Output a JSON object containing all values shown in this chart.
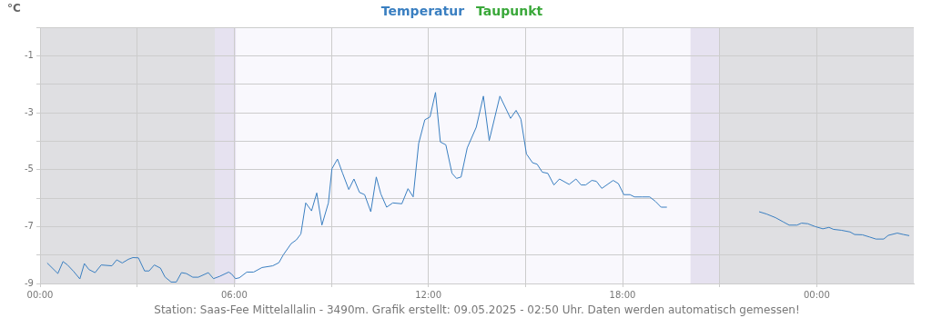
{
  "chart_data": {
    "type": "line",
    "ylabel": "°C",
    "annotations": [
      "Station: Saas-Fee Mittelallalin - 3490m. Grafik erstellt: 09.05.2025 - 02:50 Uhr. Daten werden automatisch gemessen!"
    ],
    "xlim": [
      0,
      27
    ],
    "xticks": [
      {
        "value": 0,
        "label": "00:00"
      },
      {
        "value": 3,
        "label": null
      },
      {
        "value": 6,
        "label": "06:00"
      },
      {
        "value": 9,
        "label": null
      },
      {
        "value": 12,
        "label": "12:00"
      },
      {
        "value": 15,
        "label": null
      },
      {
        "value": 18,
        "label": "18:00"
      },
      {
        "value": 21,
        "label": null
      },
      {
        "value": 24,
        "label": "00:00"
      }
    ],
    "ylim": [
      -9,
      0
    ],
    "yticks": [
      -9,
      {
        "value": -8,
        "label": null
      },
      -7,
      {
        "value": -6,
        "label": null
      },
      -5,
      {
        "value": -4,
        "label": null
      },
      -3,
      {
        "value": -2,
        "label": null
      },
      -1,
      {
        "value": 0,
        "label": null
      }
    ],
    "grid": true,
    "legend": "top",
    "marker": "none",
    "line_style": "solid",
    "bands": [
      {
        "axis": "x",
        "from": 0,
        "to": 5.4,
        "color": "#dfdfe2"
      },
      {
        "axis": "x",
        "from": 5.4,
        "to": 6.05,
        "color": "#e6e2f0"
      },
      {
        "axis": "x",
        "from": 20.1,
        "to": 21,
        "color": "#e6e2f0"
      },
      {
        "axis": "x",
        "from": 21,
        "to": 27,
        "color": "#dfdfe2"
      }
    ],
    "series": [
      {
        "name": "Temperatur",
        "color": "#3a7fc1",
        "x": [
          0.22,
          0.55,
          0.71,
          0.85,
          1.04,
          1.23,
          1.37,
          1.51,
          1.7,
          1.89,
          2.22,
          2.37,
          2.54,
          2.73,
          2.87,
          3.04,
          3.23,
          3.37,
          3.53,
          3.72,
          3.86,
          4.05,
          4.21,
          4.37,
          4.52,
          4.72,
          4.89,
          5.2,
          5.36,
          5.55,
          5.83,
          5.92,
          6.04,
          6.16,
          6.39,
          6.6,
          6.86,
          7.19,
          7.38,
          7.52,
          7.76,
          7.92,
          8.06,
          8.21,
          8.39,
          8.55,
          8.71,
          8.91,
          9.02,
          9.19,
          9.35,
          9.54,
          9.7,
          9.87,
          10.03,
          10.22,
          10.39,
          10.53,
          10.71,
          10.9,
          11.18,
          11.37,
          11.53,
          11.7,
          11.89,
          12.05,
          12.22,
          12.37,
          12.54,
          12.73,
          12.87,
          13.01,
          13.2,
          13.48,
          13.7,
          13.88,
          14.21,
          14.54,
          14.71,
          14.86,
          15.03,
          15.22,
          15.36,
          15.52,
          15.69,
          15.88,
          16.05,
          16.35,
          16.56,
          16.72,
          16.86,
          17.05,
          17.19,
          17.36,
          17.71,
          17.87,
          18.04,
          18.23,
          18.37,
          18.6,
          18.84,
          19.02,
          19.19,
          19.37,
          20.8,
          22.22,
          22.45,
          22.73,
          22.97,
          23.15,
          23.39,
          23.53,
          23.72,
          23.95,
          24.19,
          24.38,
          24.52,
          24.76,
          25.03,
          25.17,
          25.41,
          25.64,
          25.83,
          26.07,
          26.21,
          26.49,
          26.68,
          26.86
        ],
        "values": [
          -8.28,
          -8.65,
          -8.23,
          -8.35,
          -8.58,
          -8.84,
          -8.3,
          -8.51,
          -8.62,
          -8.35,
          -8.38,
          -8.17,
          -8.28,
          -8.15,
          -8.09,
          -8.1,
          -8.56,
          -8.56,
          -8.35,
          -8.46,
          -8.77,
          -8.95,
          -8.95,
          -8.62,
          -8.65,
          -8.78,
          -8.78,
          -8.62,
          -8.83,
          -8.75,
          -8.6,
          -8.67,
          -8.83,
          -8.8,
          -8.6,
          -8.6,
          -8.44,
          -8.38,
          -8.27,
          -7.99,
          -7.6,
          -7.47,
          -7.26,
          -6.17,
          -6.45,
          -5.82,
          -6.95,
          -6.17,
          -4.97,
          -4.63,
          -5.13,
          -5.7,
          -5.33,
          -5.8,
          -5.88,
          -6.48,
          -5.26,
          -5.85,
          -6.32,
          -6.17,
          -6.2,
          -5.67,
          -5.96,
          -4.08,
          -3.25,
          -3.15,
          -2.29,
          -4.03,
          -4.13,
          -5.13,
          -5.31,
          -5.26,
          -4.24,
          -3.51,
          -2.42,
          -3.98,
          -2.42,
          -3.2,
          -2.92,
          -3.23,
          -4.45,
          -4.76,
          -4.81,
          -5.09,
          -5.13,
          -5.54,
          -5.33,
          -5.52,
          -5.33,
          -5.54,
          -5.54,
          -5.38,
          -5.41,
          -5.66,
          -5.38,
          -5.49,
          -5.88,
          -5.88,
          -5.96,
          -5.96,
          -5.96,
          -6.12,
          -6.32,
          -6.32,
          null,
          -6.48,
          -6.56,
          -6.69,
          -6.84,
          -6.95,
          -6.95,
          -6.88,
          -6.9,
          -7.0,
          -7.08,
          -7.03,
          -7.1,
          -7.13,
          -7.19,
          -7.28,
          -7.29,
          -7.37,
          -7.44,
          -7.44,
          -7.31,
          -7.23,
          -7.28,
          -7.32
        ]
      },
      {
        "name": "Taupunkt",
        "color": "#3aa83a"
      }
    ]
  }
}
